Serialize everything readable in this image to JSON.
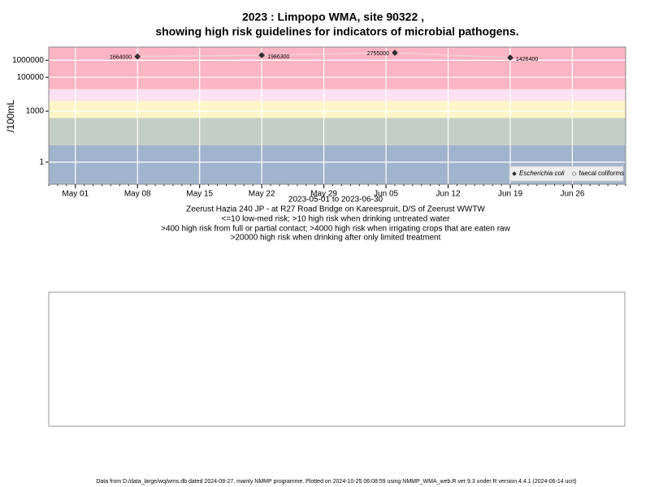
{
  "chart_data": {
    "type": "line",
    "title": "2023 : Limpopo WMA, site 90322 ,",
    "subtitle": "showing high risk guidelines for indicators of microbial pathogens.",
    "x": [
      "2023-05-08",
      "2023-05-22",
      "2023-06-06",
      "2023-06-19"
    ],
    "series": [
      {
        "name": "Escherichia coli",
        "color": "#333333",
        "line_color": "#f4d0d4",
        "values": [
          1664000,
          1986300,
          2755000,
          1426400
        ]
      },
      {
        "name": "faecal coliforms",
        "color": "#ffffff",
        "values": [
          null,
          null,
          null,
          null
        ]
      }
    ],
    "xlim": [
      "2023-04-28",
      "2023-07-02"
    ],
    "xticks": [
      {
        "value": "2023-05-01",
        "label": "May 01"
      },
      {
        "value": "2023-05-08",
        "label": "May 08"
      },
      {
        "value": "2023-05-15",
        "label": "May 15"
      },
      {
        "value": "2023-05-22",
        "label": "May 22"
      },
      {
        "value": "2023-05-29",
        "label": "May 29"
      },
      {
        "value": "2023-06-05",
        "label": "Jun 05"
      },
      {
        "value": "2023-06-12",
        "label": "Jun 12"
      },
      {
        "value": "2023-06-19",
        "label": "Jun 19"
      },
      {
        "value": "2023-06-26",
        "label": "Jun 26"
      }
    ],
    "ylim": [
      0.05,
      6000000
    ],
    "yticks": [
      1,
      1000,
      100000,
      1000000
    ],
    "log_y": true,
    "grid": true,
    "ylabel": "/100mL",
    "bands": [
      {
        "to": 10,
        "color": "#a2b3cd"
      },
      {
        "to": 400,
        "color": "#c4cec4"
      },
      {
        "to": 4000,
        "color": "#fef6c8"
      },
      {
        "to": 20000,
        "color": "#fde1f1"
      },
      {
        "to": 6000000,
        "color": "#fdb4c3"
      }
    ],
    "legend": "bottom-right",
    "xlabel": "2023-05-01 to 2023-06-30",
    "notes": [
      "Zeerust Hazia 240 JP - at R27 Road Bridge on Kareespruit, D/S of Zeerust WWTW",
      "<=10 low-med risk; >10 high risk when drinking untreated water",
      ">400 high risk from full or partial contact; >4000 high risk when irrigating crops that are eaten raw",
      ">20000 high risk when drinking after only limited treatment"
    ],
    "footer": "Data from D:/data_large/wq/wms.db dated 2024-08-27, mainly NMMP programme. Plotted on 2024-10-25 06:08:59 using NMMP_WMA_web.R ver 9.3 under R version 4.4.1 (2024-06-14 ucrt)"
  }
}
